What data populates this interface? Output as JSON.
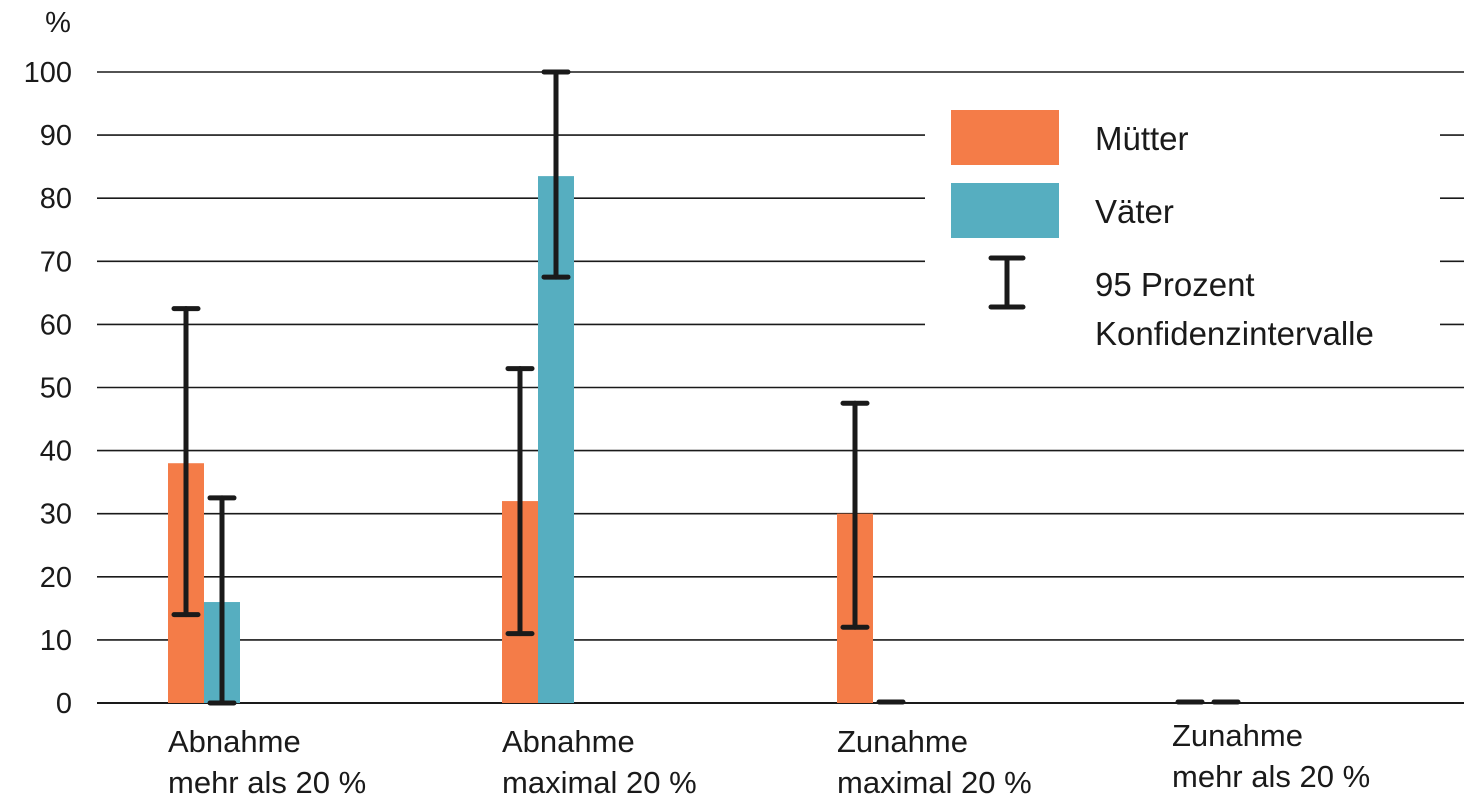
{
  "chart_data": {
    "type": "bar",
    "yunit": "%",
    "ylim": [
      0,
      100
    ],
    "yticks": [
      0,
      10,
      20,
      30,
      40,
      50,
      60,
      70,
      80,
      90,
      100
    ],
    "grid": true,
    "categories": [
      [
        "Abnahme",
        "mehr als 20 %"
      ],
      [
        "Abnahme",
        "maximal 20 %"
      ],
      [
        "Zunahme",
        "maximal 20 %"
      ],
      [
        "Zunahme",
        "mehr als 20 %"
      ]
    ],
    "series": [
      {
        "name": "Mütter",
        "color": "#F47C48",
        "values": [
          38,
          32,
          30,
          0
        ],
        "ci_low": [
          14,
          11,
          12,
          0
        ],
        "ci_high": [
          62.5,
          53,
          47.5,
          0
        ]
      },
      {
        "name": "Väter",
        "color": "#56AEC0",
        "values": [
          16,
          83.5,
          0,
          0
        ],
        "ci_low": [
          0,
          67.5,
          0,
          0
        ],
        "ci_high": [
          32.5,
          100,
          0,
          0
        ]
      }
    ],
    "legend": {
      "position": "top-right",
      "entries": [
        "Mütter",
        "Väter"
      ],
      "ci_label": [
        "95 Prozent",
        "Konfidenzintervalle"
      ]
    }
  }
}
